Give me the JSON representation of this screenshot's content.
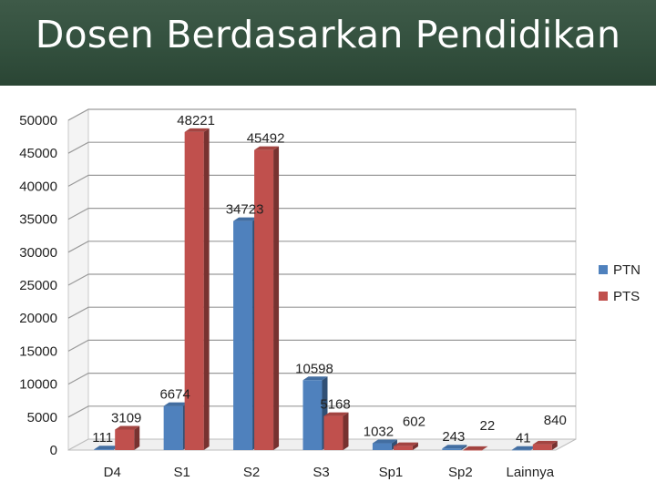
{
  "slide": {
    "title": "Dosen Berdasarkan Pendidikan"
  },
  "chart_data": {
    "type": "bar",
    "style": "3d-clustered",
    "categories": [
      "D4",
      "S1",
      "S2",
      "S3",
      "Sp1",
      "Sp2",
      "Lainnya"
    ],
    "series": [
      {
        "name": "PTN",
        "color": "#4f81bd",
        "values": [
          111,
          6674,
          34723,
          10598,
          1032,
          243,
          41
        ]
      },
      {
        "name": "PTS",
        "color": "#c0504d",
        "values": [
          3109,
          48221,
          45492,
          5168,
          602,
          22,
          840
        ]
      }
    ],
    "y_ticks": [
      "0",
      "5000",
      "10000",
      "15000",
      "20000",
      "25000",
      "30000",
      "35000",
      "40000",
      "45000",
      "50000"
    ],
    "ylim": [
      0,
      50000
    ],
    "grid": true,
    "legend": "right",
    "data_labels": true
  }
}
